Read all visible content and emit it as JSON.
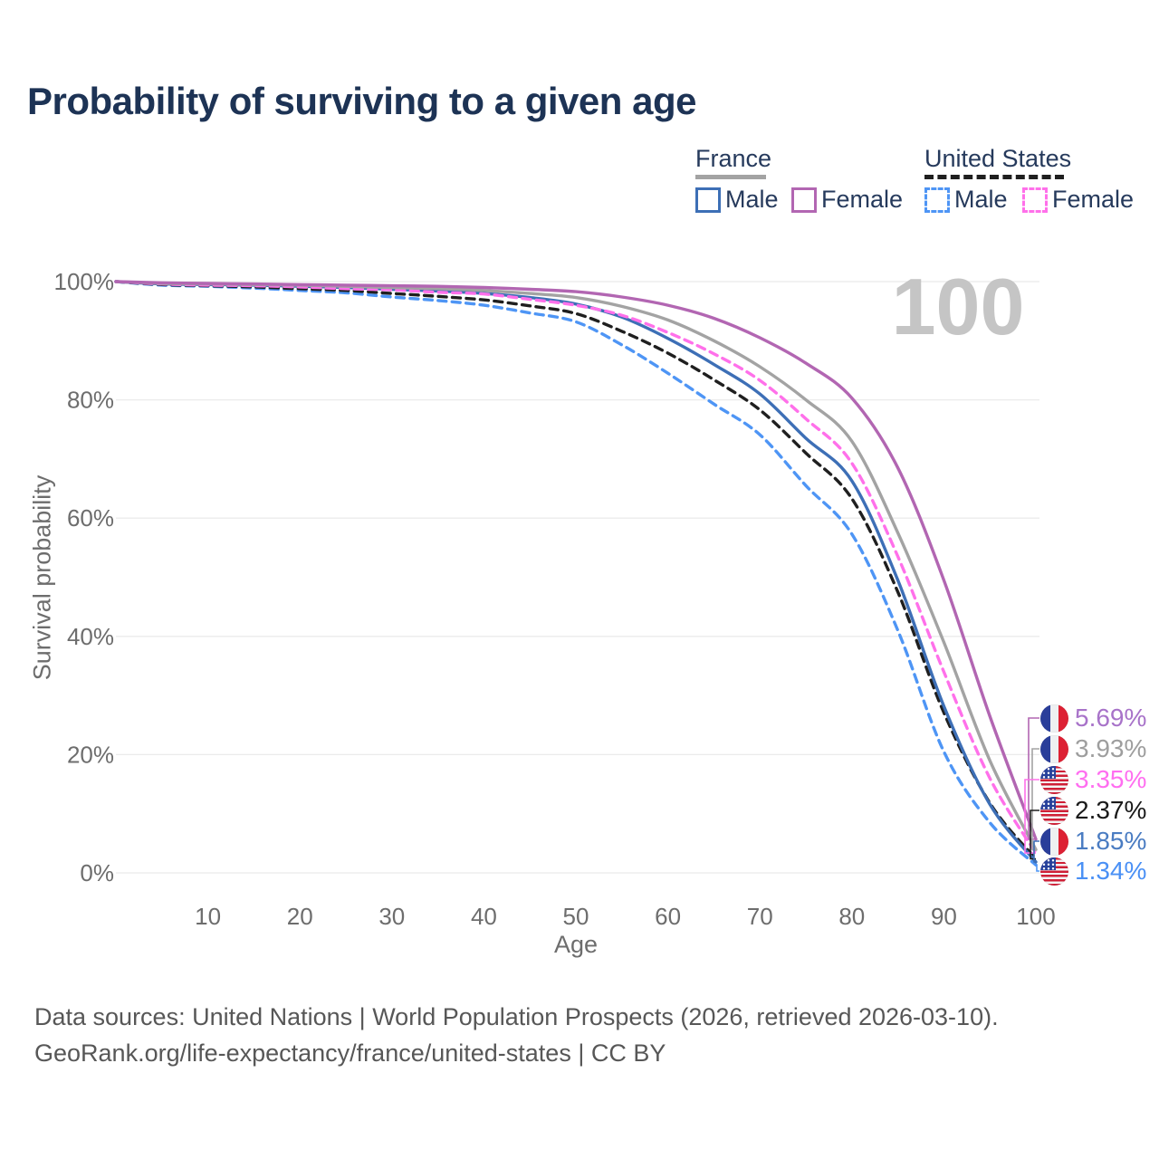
{
  "title": "Probability of surviving to a given age",
  "watermark_age": "100",
  "legend": {
    "france": {
      "label": "France",
      "male_label": "Male",
      "female_label": "Female"
    },
    "united_states": {
      "label": "United States",
      "male_label": "Male",
      "female_label": "Female"
    }
  },
  "axes": {
    "y": {
      "title": "Survival probability",
      "tick_labels": [
        "0%",
        "20%",
        "40%",
        "60%",
        "80%",
        "100%"
      ],
      "tick_values": [
        0,
        20,
        40,
        60,
        80,
        100
      ]
    },
    "x": {
      "title": "Age",
      "tick_values": [
        10,
        20,
        30,
        40,
        50,
        60,
        70,
        80,
        90,
        100
      ]
    }
  },
  "chart_data": {
    "type": "line",
    "title": "Probability of surviving to a given age",
    "xlabel": "Age",
    "ylabel": "Survival probability",
    "xlim": [
      0,
      100
    ],
    "ylim": [
      0,
      100
    ],
    "grid": "horizontal",
    "x_ages": [
      0,
      5,
      10,
      15,
      20,
      25,
      30,
      35,
      40,
      45,
      50,
      55,
      60,
      65,
      70,
      75,
      80,
      85,
      90,
      95,
      100
    ],
    "series": [
      {
        "id": "fr_female",
        "name": "France Female",
        "country": "fr",
        "dash": false,
        "color": "#b266b2",
        "label_color": "#a873c9",
        "end_value": "5.69%",
        "values": [
          100,
          99.8,
          99.7,
          99.6,
          99.5,
          99.4,
          99.3,
          99.2,
          99.0,
          98.7,
          98.3,
          97.4,
          96.0,
          93.8,
          90.5,
          86.2,
          80.3,
          68.5,
          49.5,
          26.5,
          5.69
        ]
      },
      {
        "id": "fr_total",
        "name": "France Total",
        "country": "fr",
        "dash": false,
        "color": "#a3a3a3",
        "label_color": "#9e9e9e",
        "end_value": "3.93%",
        "values": [
          100,
          99.7,
          99.6,
          99.5,
          99.4,
          99.2,
          99.0,
          98.8,
          98.5,
          98.0,
          97.3,
          95.8,
          93.5,
          90.0,
          85.6,
          80.0,
          73.0,
          57.5,
          39.0,
          19.0,
          3.93
        ]
      },
      {
        "id": "us_female",
        "name": "United States Female",
        "country": "us",
        "dash": true,
        "color": "#ff70ea",
        "label_color": "#ff6ef0",
        "end_value": "3.35%",
        "values": [
          100,
          99.6,
          99.4,
          99.3,
          99.1,
          98.8,
          98.6,
          98.2,
          97.9,
          97.0,
          96.0,
          94.3,
          91.4,
          87.8,
          83.3,
          76.8,
          69.3,
          53.5,
          34.0,
          16.0,
          3.35
        ]
      },
      {
        "id": "us_total",
        "name": "United States Total",
        "country": "us",
        "dash": true,
        "color": "#1f1f1f",
        "label_color": "#1a1a1a",
        "end_value": "2.37%",
        "values": [
          100,
          99.5,
          99.3,
          99.1,
          98.8,
          98.5,
          98.0,
          97.5,
          96.9,
          95.9,
          94.6,
          91.6,
          87.9,
          83.4,
          78.3,
          71.0,
          63.3,
          47.5,
          27.1,
          11.8,
          2.37
        ]
      },
      {
        "id": "fr_male",
        "name": "France Male",
        "country": "fr",
        "dash": false,
        "color": "#3d6fb6",
        "label_color": "#4a7cc2",
        "end_value": "1.85%",
        "values": [
          100,
          99.6,
          99.5,
          99.4,
          99.2,
          99.0,
          98.7,
          98.4,
          98.0,
          97.3,
          96.2,
          94.0,
          90.4,
          86.0,
          81.0,
          73.5,
          66.3,
          49.5,
          28.2,
          11.6,
          1.85
        ]
      },
      {
        "id": "us_male",
        "name": "United States Male",
        "country": "us",
        "dash": true,
        "color": "#4e95f5",
        "label_color": "#4a90f5",
        "end_value": "1.34%",
        "values": [
          100,
          99.4,
          99.2,
          98.9,
          98.5,
          98.1,
          97.4,
          96.8,
          96.0,
          94.7,
          93.2,
          89.3,
          84.5,
          79.3,
          74.1,
          65.5,
          57.3,
          41.0,
          20.5,
          8.5,
          1.34
        ]
      }
    ]
  },
  "footer": {
    "sources": "Data sources: United Nations | World Population Prospects (2026, retrieved 2026-03-10).",
    "license": "GeoRank.org/life-expectancy/france/united-states | CC BY"
  }
}
